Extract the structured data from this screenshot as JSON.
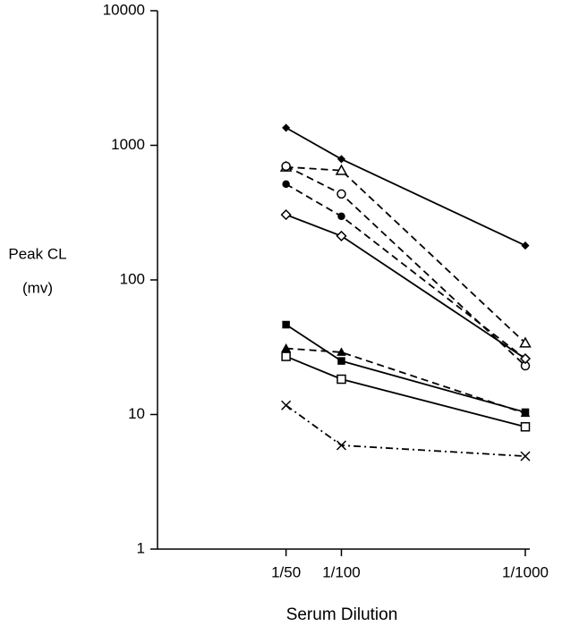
{
  "chart_data": {
    "type": "line",
    "y_label": [
      "Peak CL",
      "(mv)"
    ],
    "x_label": "Serum Dilution",
    "x": [
      50,
      100,
      1000
    ],
    "xlim": [
      10,
      1000
    ],
    "xticks": [
      {
        "value": 50,
        "label": "1/50"
      },
      {
        "value": 100,
        "label": "1/100"
      },
      {
        "value": 1000,
        "label": "1/1000"
      }
    ],
    "ylim": [
      1,
      10000
    ],
    "yticks": [
      1,
      10,
      100,
      1000,
      10000
    ],
    "xscale": "log",
    "yscale": "log",
    "series": [
      {
        "color": "#000000",
        "dash": "solid",
        "marker": "filled-diamond",
        "values": [
          1350,
          790,
          180
        ]
      },
      {
        "color": "#000000",
        "dash": "dashed",
        "marker": "open-triangle",
        "values": [
          690,
          650,
          34
        ]
      },
      {
        "color": "#000000",
        "dash": "dashed",
        "marker": "open-circle",
        "values": [
          700,
          435,
          23
        ]
      },
      {
        "color": "#000000",
        "dash": "dashed",
        "marker": "filled-circle",
        "values": [
          515,
          297,
          26
        ]
      },
      {
        "color": "#000000",
        "dash": "solid",
        "marker": "open-diamond",
        "values": [
          305,
          212,
          26
        ]
      },
      {
        "color": "#000000",
        "dash": "solid",
        "marker": "filled-square",
        "values": [
          46.5,
          25,
          10.4
        ]
      },
      {
        "color": "#000000",
        "dash": "dashed",
        "marker": "filled-triangle",
        "values": [
          31,
          29,
          10.2
        ]
      },
      {
        "color": "#000000",
        "dash": "solid",
        "marker": "open-square",
        "values": [
          27,
          18.3,
          8.1
        ]
      },
      {
        "color": "#000000",
        "dash": "dash-dot",
        "marker": "cross",
        "values": [
          11.7,
          5.9,
          4.9
        ]
      }
    ]
  }
}
